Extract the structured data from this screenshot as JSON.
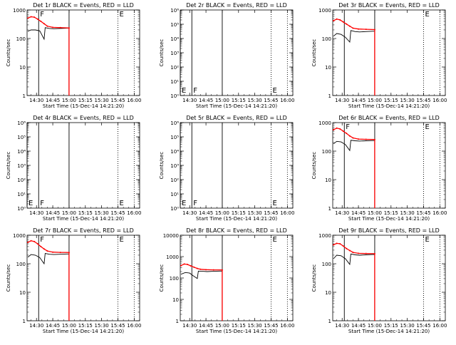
{
  "figure": {
    "x_axis_label": "Start Time (15-Dec-14 14:21:20)",
    "y_axis_label": "Counts/sec",
    "x_tick_labels": [
      "14:30",
      "14:45",
      "15:00",
      "15:15",
      "15:30",
      "15:45",
      "16:00"
    ],
    "events_color": "#000000",
    "lld_color": "#ff0000",
    "marker_color": "#000000"
  },
  "chart_data": [
    {
      "type": "line",
      "title": "Det 1r BLACK = Events, RED = LLD",
      "x_time_range": [
        "14:21:20",
        "16:05"
      ],
      "y_scale": "log",
      "ylim": [
        1,
        1000
      ],
      "y_tick_labels": [
        "1",
        "10",
        "100",
        "1000"
      ],
      "grid": false,
      "markers": [
        {
          "time": "14:32",
          "style": "solid",
          "label": "F"
        },
        {
          "time": "15:00",
          "style": "solid",
          "label": ""
        },
        {
          "time": "15:45",
          "style": "dotted",
          "label": "E"
        },
        {
          "time": "16:00",
          "style": "dotted",
          "label": ""
        }
      ],
      "series": [
        {
          "role": "events",
          "x": [
            "14:22",
            "14:25",
            "14:29",
            "14:33",
            "14:37",
            "14:38",
            "14:42",
            "14:46",
            "14:52",
            "14:58",
            "15:00",
            "15:00"
          ],
          "values": [
            180,
            200,
            200,
            185,
            95,
            240,
            225,
            220,
            225,
            230,
            230,
            1
          ]
        },
        {
          "role": "lld",
          "x": [
            "14:22",
            "14:25",
            "14:28",
            "14:31",
            "14:34",
            "14:37",
            "14:40",
            "14:45",
            "14:52",
            "15:00",
            "15:00"
          ],
          "values": [
            520,
            580,
            560,
            480,
            400,
            330,
            270,
            245,
            240,
            235,
            1
          ]
        }
      ]
    },
    {
      "type": "line",
      "title": "Det 2r BLACK = Events, RED = LLD",
      "x_time_range": [
        "14:21:20",
        "16:05"
      ],
      "y_scale": "log",
      "ylim": [
        1,
        1000000
      ],
      "y_tick_labels": [
        "10⁰",
        "10¹",
        "10²",
        "10³",
        "10⁴",
        "10⁵",
        "10⁶"
      ],
      "grid": false,
      "markers": [
        {
          "time": "14:21:20",
          "style": "solid",
          "label": "E"
        },
        {
          "time": "14:32",
          "style": "solid",
          "label": "F"
        },
        {
          "time": "15:00",
          "style": "solid",
          "label": ""
        },
        {
          "time": "15:45",
          "style": "dotted",
          "label": "E"
        },
        {
          "time": "16:00",
          "style": "dotted",
          "label": ""
        }
      ],
      "series": []
    },
    {
      "type": "line",
      "title": "Det 3r BLACK = Events, RED = LLD",
      "x_time_range": [
        "14:21:20",
        "16:05"
      ],
      "y_scale": "log",
      "ylim": [
        1,
        1000
      ],
      "y_tick_labels": [
        "1",
        "10",
        "100",
        "1000"
      ],
      "grid": false,
      "markers": [
        {
          "time": "14:32",
          "style": "solid",
          "label": ""
        },
        {
          "time": "15:00",
          "style": "solid",
          "label": ""
        },
        {
          "time": "15:45",
          "style": "dotted",
          "label": "E"
        },
        {
          "time": "16:00",
          "style": "dotted",
          "label": ""
        }
      ],
      "series": [
        {
          "role": "events",
          "x": [
            "14:22",
            "14:25",
            "14:29",
            "14:33",
            "14:37",
            "14:38",
            "14:42",
            "14:46",
            "14:52",
            "14:58",
            "15:00",
            "15:00"
          ],
          "values": [
            120,
            150,
            140,
            110,
            75,
            190,
            175,
            170,
            175,
            180,
            180,
            1
          ]
        },
        {
          "role": "lld",
          "x": [
            "14:22",
            "14:25",
            "14:28",
            "14:31",
            "14:34",
            "14:37",
            "14:40",
            "14:45",
            "14:52",
            "15:00",
            "15:00"
          ],
          "values": [
            420,
            480,
            450,
            380,
            320,
            270,
            230,
            215,
            210,
            205,
            1
          ]
        }
      ]
    },
    {
      "type": "line",
      "title": "Det 4r BLACK = Events, RED = LLD",
      "x_time_range": [
        "14:21:20",
        "16:05"
      ],
      "y_scale": "log",
      "ylim": [
        1,
        1000000
      ],
      "y_tick_labels": [
        "10⁰",
        "10¹",
        "10²",
        "10³",
        "10⁴",
        "10⁵",
        "10⁶"
      ],
      "grid": false,
      "markers": [
        {
          "time": "14:21:20",
          "style": "solid",
          "label": "E"
        },
        {
          "time": "14:32",
          "style": "solid",
          "label": "F"
        },
        {
          "time": "15:00",
          "style": "solid",
          "label": ""
        },
        {
          "time": "15:45",
          "style": "dotted",
          "label": "E"
        },
        {
          "time": "16:00",
          "style": "dotted",
          "label": ""
        }
      ],
      "series": []
    },
    {
      "type": "line",
      "title": "Det 5r BLACK = Events, RED = LLD",
      "x_time_range": [
        "14:21:20",
        "16:05"
      ],
      "y_scale": "log",
      "ylim": [
        1,
        1000000
      ],
      "y_tick_labels": [
        "10⁰",
        "10¹",
        "10²",
        "10³",
        "10⁴",
        "10⁵",
        "10⁶"
      ],
      "grid": false,
      "markers": [
        {
          "time": "14:21:20",
          "style": "solid",
          "label": "E"
        },
        {
          "time": "14:32",
          "style": "solid",
          "label": "F"
        },
        {
          "time": "15:00",
          "style": "solid",
          "label": ""
        },
        {
          "time": "15:45",
          "style": "dotted",
          "label": "E"
        },
        {
          "time": "16:00",
          "style": "dotted",
          "label": ""
        }
      ],
      "series": []
    },
    {
      "type": "line",
      "title": "Det 6r BLACK = Events, RED = LLD",
      "x_time_range": [
        "14:21:20",
        "16:05"
      ],
      "y_scale": "log",
      "ylim": [
        1,
        1000
      ],
      "y_tick_labels": [
        "1",
        "10",
        "100",
        "1000"
      ],
      "grid": false,
      "markers": [
        {
          "time": "14:32",
          "style": "solid",
          "label": "F"
        },
        {
          "time": "15:00",
          "style": "solid",
          "label": ""
        },
        {
          "time": "15:45",
          "style": "dotted",
          "label": "E"
        },
        {
          "time": "16:00",
          "style": "dotted",
          "label": ""
        }
      ],
      "series": [
        {
          "role": "events",
          "x": [
            "14:22",
            "14:25",
            "14:29",
            "14:33",
            "14:37",
            "14:38",
            "14:42",
            "14:46",
            "14:52",
            "14:58",
            "15:00",
            "15:00"
          ],
          "values": [
            180,
            220,
            210,
            170,
            105,
            240,
            230,
            225,
            230,
            235,
            235,
            1
          ]
        },
        {
          "role": "lld",
          "x": [
            "14:22",
            "14:25",
            "14:28",
            "14:31",
            "14:34",
            "14:37",
            "14:40",
            "14:45",
            "14:52",
            "15:00",
            "15:00"
          ],
          "values": [
            560,
            640,
            600,
            500,
            420,
            340,
            290,
            265,
            258,
            255,
            1
          ]
        }
      ]
    },
    {
      "type": "line",
      "title": "Det 7r BLACK = Events, RED = LLD",
      "x_time_range": [
        "14:21:20",
        "16:05"
      ],
      "y_scale": "log",
      "ylim": [
        1,
        1000
      ],
      "y_tick_labels": [
        "1",
        "10",
        "100",
        "1000"
      ],
      "grid": false,
      "markers": [
        {
          "time": "14:32",
          "style": "solid",
          "label": "F"
        },
        {
          "time": "15:00",
          "style": "solid",
          "label": ""
        },
        {
          "time": "15:45",
          "style": "dotted",
          "label": "E"
        },
        {
          "time": "16:00",
          "style": "dotted",
          "label": ""
        }
      ],
      "series": [
        {
          "role": "events",
          "x": [
            "14:22",
            "14:25",
            "14:29",
            "14:33",
            "14:37",
            "14:38",
            "14:42",
            "14:46",
            "14:52",
            "14:58",
            "15:00",
            "15:00"
          ],
          "values": [
            170,
            210,
            200,
            165,
            100,
            230,
            215,
            210,
            215,
            220,
            220,
            1
          ]
        },
        {
          "role": "lld",
          "x": [
            "14:22",
            "14:25",
            "14:28",
            "14:31",
            "14:34",
            "14:37",
            "14:40",
            "14:45",
            "14:52",
            "15:00",
            "15:00"
          ],
          "values": [
            560,
            640,
            600,
            500,
            400,
            330,
            280,
            255,
            250,
            248,
            1
          ]
        }
      ]
    },
    {
      "type": "line",
      "title": "Det 8r BLACK = Events, RED = LLD",
      "x_time_range": [
        "14:21:20",
        "16:05"
      ],
      "y_scale": "log",
      "ylim": [
        1,
        10000
      ],
      "y_tick_labels": [
        "1",
        "10",
        "100",
        "1000",
        "10000"
      ],
      "grid": false,
      "markers": [
        {
          "time": "14:32",
          "style": "solid",
          "label": ""
        },
        {
          "time": "15:00",
          "style": "solid",
          "label": ""
        },
        {
          "time": "15:45",
          "style": "dotted",
          "label": "E"
        },
        {
          "time": "16:00",
          "style": "dotted",
          "label": ""
        }
      ],
      "series": [
        {
          "role": "events",
          "x": [
            "14:22",
            "14:26",
            "14:30",
            "14:33",
            "14:37",
            "14:38",
            "14:42",
            "14:46",
            "14:52",
            "14:58",
            "15:00",
            "15:00"
          ],
          "values": [
            150,
            180,
            170,
            130,
            95,
            210,
            205,
            200,
            205,
            210,
            210,
            1
          ]
        },
        {
          "role": "lld",
          "x": [
            "14:22",
            "14:25",
            "14:28",
            "14:31",
            "14:34",
            "14:37",
            "14:40",
            "14:45",
            "14:52",
            "15:00",
            "15:00"
          ],
          "values": [
            380,
            450,
            430,
            370,
            320,
            280,
            255,
            245,
            240,
            238,
            1
          ]
        }
      ]
    },
    {
      "type": "line",
      "title": "Det 9r BLACK = Events, RED = LLD",
      "x_time_range": [
        "14:21:20",
        "16:05"
      ],
      "y_scale": "log",
      "ylim": [
        1,
        1000
      ],
      "y_tick_labels": [
        "1",
        "10",
        "100",
        "1000"
      ],
      "grid": false,
      "markers": [
        {
          "time": "14:32",
          "style": "solid",
          "label": ""
        },
        {
          "time": "15:00",
          "style": "solid",
          "label": ""
        },
        {
          "time": "15:45",
          "style": "dotted",
          "label": "E"
        },
        {
          "time": "16:00",
          "style": "dotted",
          "label": ""
        }
      ],
      "series": [
        {
          "role": "events",
          "x": [
            "14:22",
            "14:25",
            "14:29",
            "14:33",
            "14:37",
            "14:38",
            "14:42",
            "14:46",
            "14:52",
            "14:58",
            "15:00",
            "15:00"
          ],
          "values": [
            150,
            200,
            190,
            150,
            95,
            220,
            205,
            200,
            205,
            210,
            210,
            1
          ]
        },
        {
          "role": "lld",
          "x": [
            "14:22",
            "14:25",
            "14:28",
            "14:31",
            "14:34",
            "14:37",
            "14:40",
            "14:45",
            "14:52",
            "15:00",
            "15:00"
          ],
          "values": [
            460,
            520,
            500,
            420,
            340,
            290,
            250,
            232,
            228,
            225,
            1
          ]
        }
      ]
    }
  ]
}
